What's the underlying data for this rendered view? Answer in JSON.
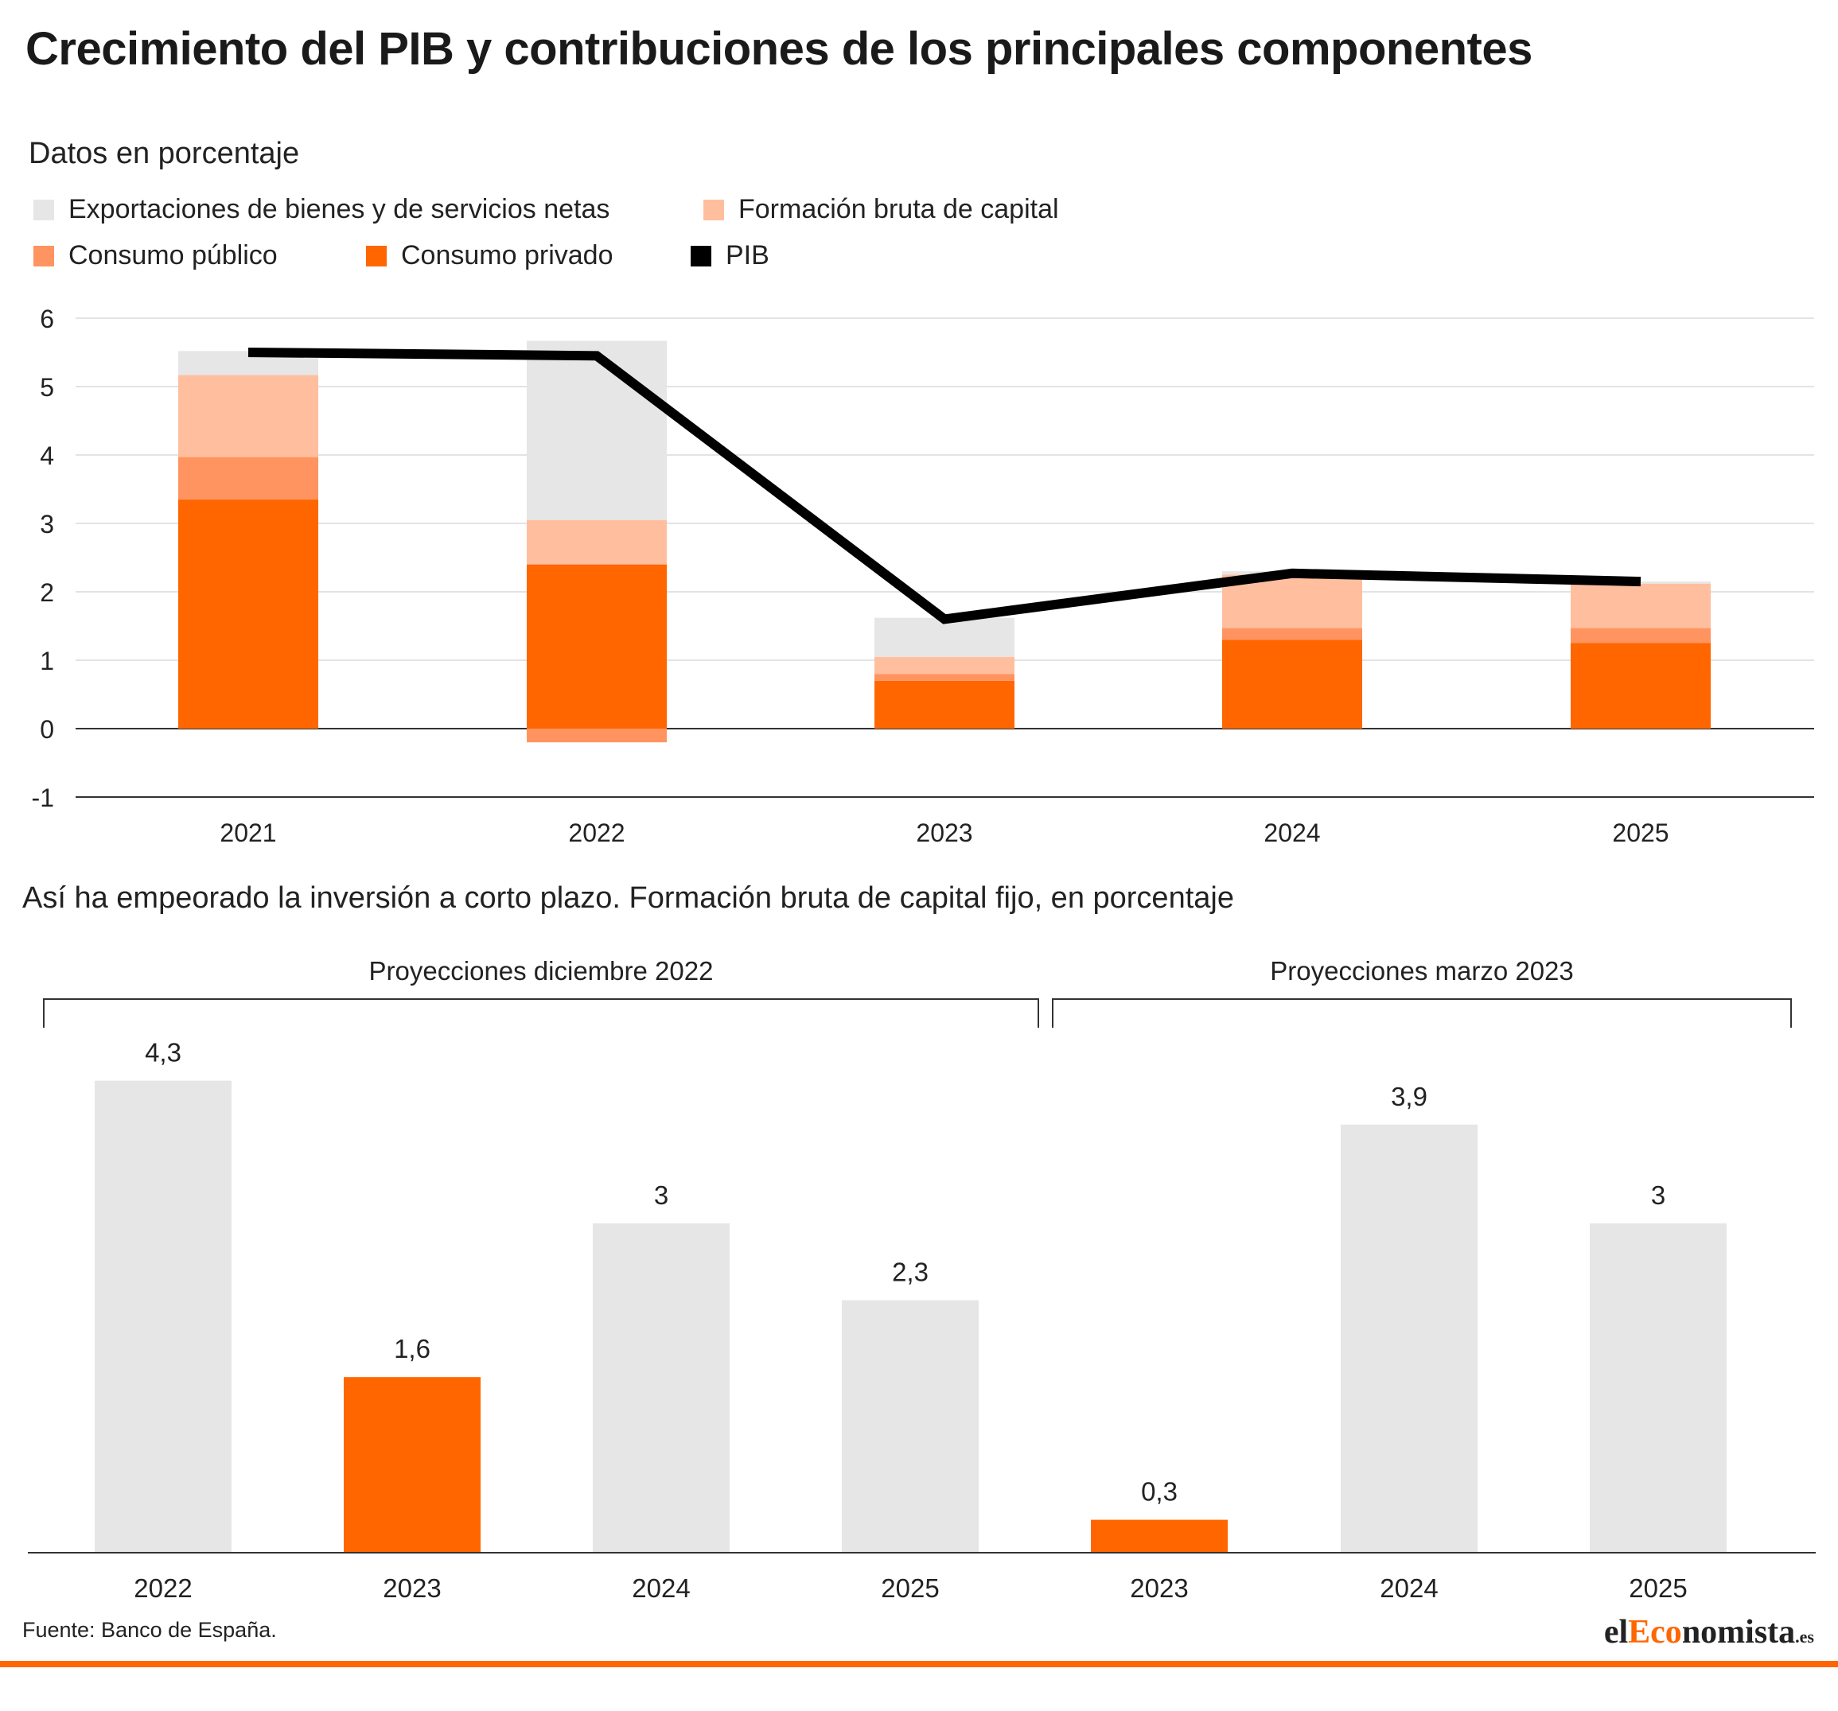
{
  "title": "Crecimiento del PIB y contribuciones de los principales componentes",
  "chart_data": [
    {
      "type": "bar",
      "subtitle": "Datos en porcentaje",
      "stacked": true,
      "categories": [
        "2021",
        "2022",
        "2023",
        "2024",
        "2025"
      ],
      "legend_placement": "top-left",
      "grid": true,
      "ylim": [
        -1,
        6
      ],
      "yticks": [
        "6",
        "5",
        "4",
        "3",
        "2",
        "1",
        "0",
        "-1"
      ],
      "series": [
        {
          "name": "Consumo privado",
          "color": "#ff6600",
          "values": [
            3.35,
            2.4,
            0.7,
            1.3,
            1.25
          ]
        },
        {
          "name": "Consumo público",
          "color": "#ff9460",
          "values": [
            0.62,
            -0.2,
            0.1,
            0.17,
            0.22
          ]
        },
        {
          "name": "Formación bruta de capital",
          "color": "#ffbf9e",
          "values": [
            1.2,
            0.65,
            0.25,
            0.78,
            0.65
          ]
        },
        {
          "name": "Exportaciones de bienes y de servicios netas",
          "color": "#e6e6e6",
          "values": [
            0.35,
            2.62,
            0.57,
            0.05,
            0.03
          ]
        }
      ],
      "line": {
        "name": "PIB",
        "color": "#000000",
        "values": [
          5.5,
          5.45,
          1.6,
          2.27,
          2.15
        ]
      }
    },
    {
      "type": "bar",
      "subtitle": "Así ha empeorado la inversión a corto plazo. Formación bruta de capital fijo, en porcentaje",
      "groups": [
        {
          "label": "Proyecciones diciembre 2022",
          "categories": [
            "2022",
            "2023",
            "2024",
            "2025"
          ],
          "values": [
            4.3,
            1.6,
            3,
            2.3
          ],
          "labels": [
            "4,3",
            "1,6",
            "3",
            "2,3"
          ],
          "colors": [
            "#e6e6e6",
            "#ff6600",
            "#e6e6e6",
            "#e6e6e6"
          ]
        },
        {
          "label": "Proyecciones marzo 2023",
          "categories": [
            "2023",
            "2024",
            "2025"
          ],
          "values": [
            0.3,
            3.9,
            3
          ],
          "labels": [
            "0,3",
            "3,9",
            "3"
          ],
          "colors": [
            "#ff6600",
            "#e6e6e6",
            "#e6e6e6"
          ]
        }
      ]
    }
  ],
  "source": "Fuente: Banco de España.",
  "brand": {
    "part1": "el",
    "part2": "Eco",
    "part3": "nomista",
    "tld": ".es"
  }
}
